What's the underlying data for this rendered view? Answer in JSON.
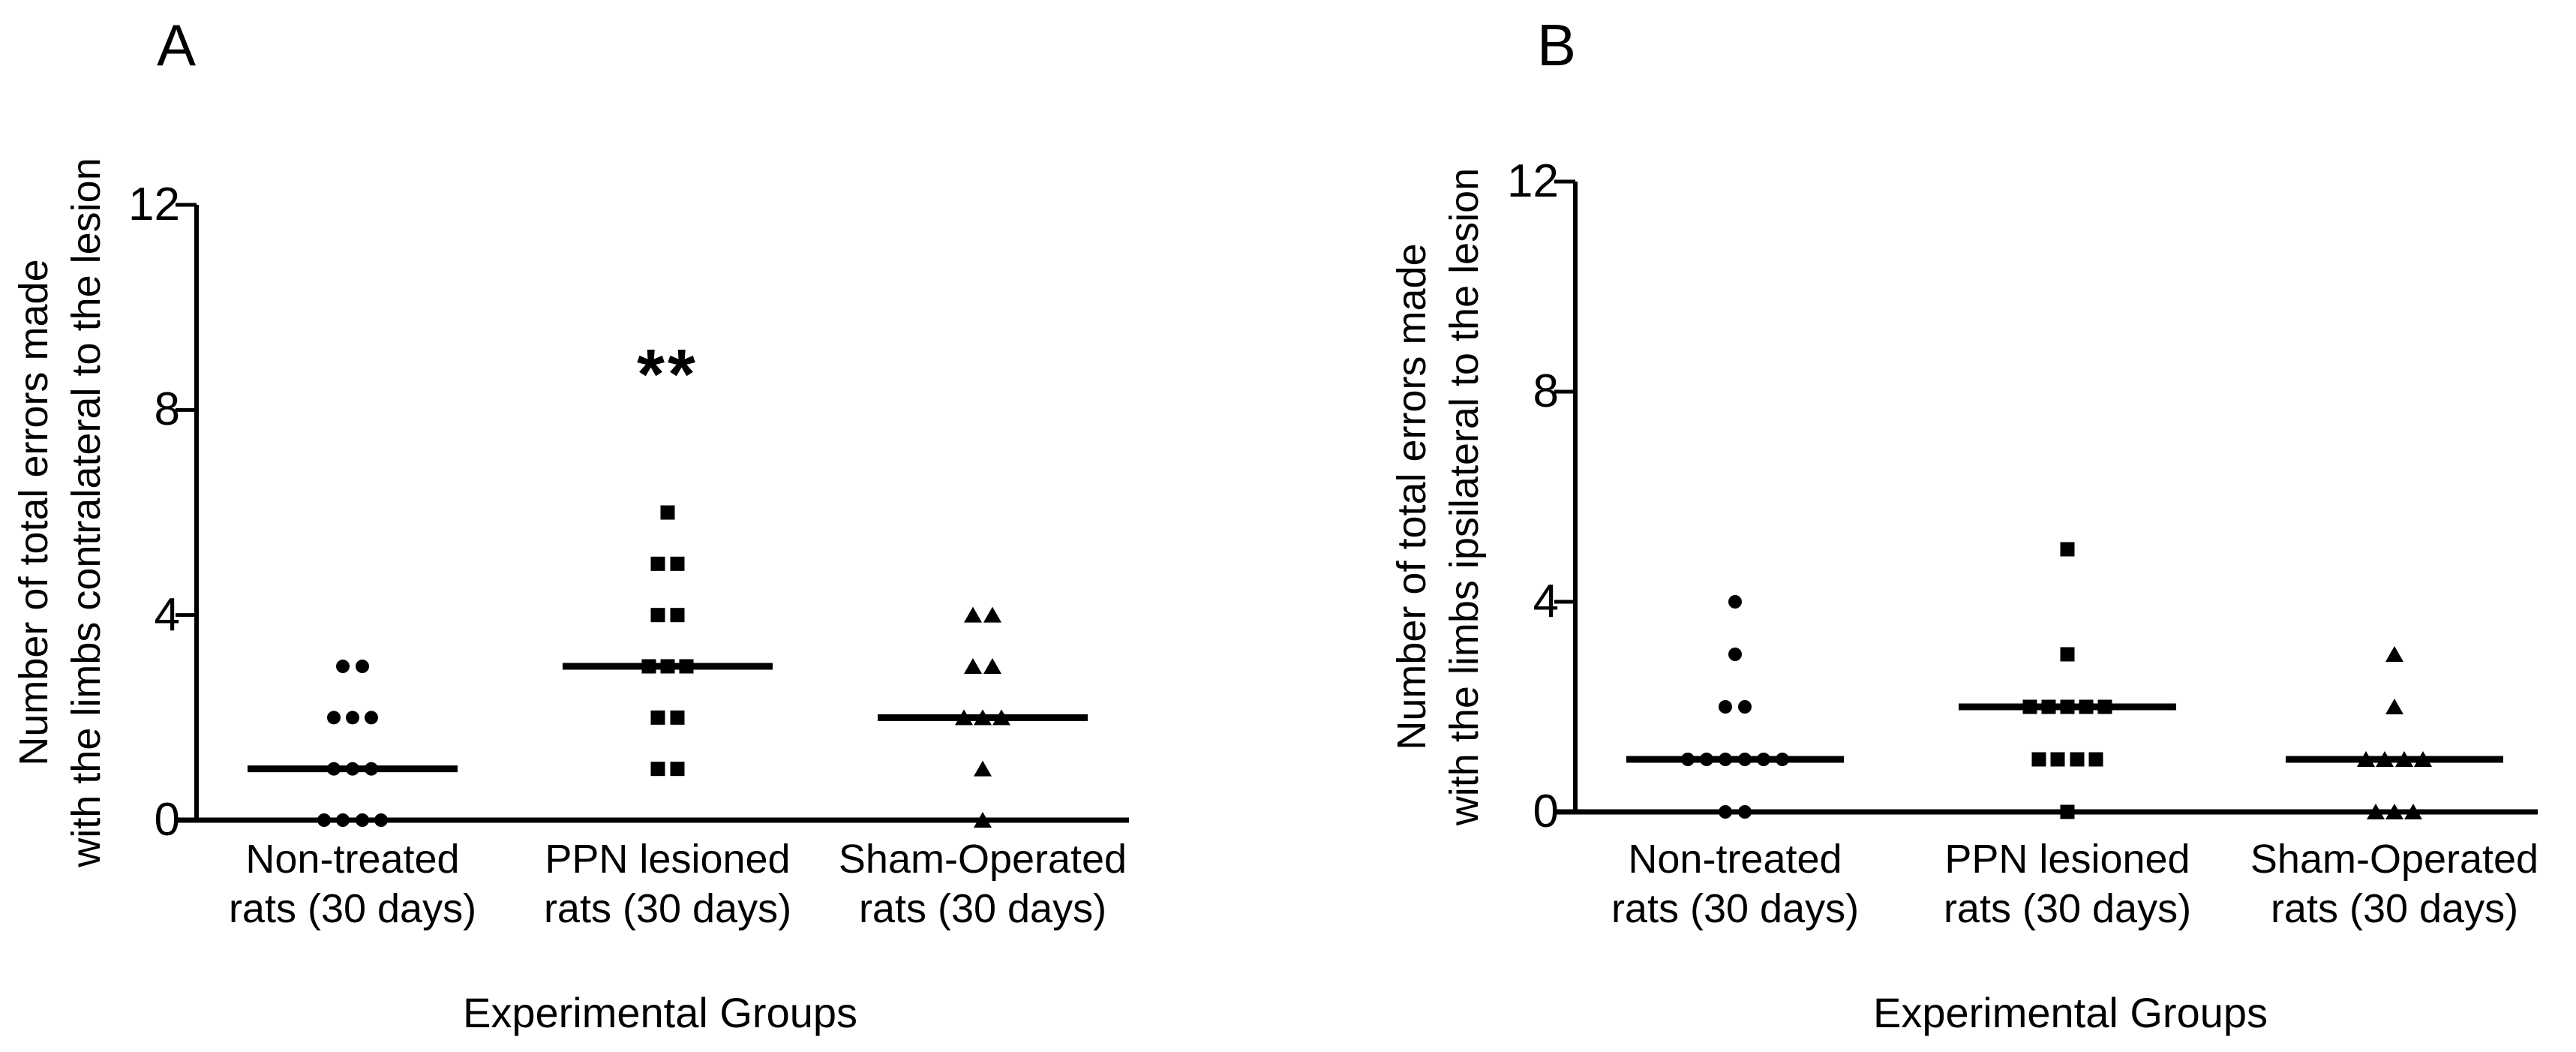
{
  "figure": {
    "background": "#ffffff",
    "ink_color": "#000000"
  },
  "chart_data": [
    {
      "type": "scatter",
      "panel_letter": "A",
      "ylabel_line1": "Number of total errors made",
      "ylabel_line2": "with the limbs contralateral to the lesion",
      "xlabel": "Experimental Groups",
      "yticks": [
        0,
        4,
        8,
        12
      ],
      "ylim": [
        0,
        12
      ],
      "legend": "none",
      "significance": {
        "group_index": 1,
        "label": "**"
      },
      "groups": [
        {
          "label_line1": "Non-treated",
          "label_line2": "rats (30 days)",
          "marker": "circle",
          "median": 1,
          "points": [
            {
              "v": 3,
              "dx": -13
            },
            {
              "v": 3,
              "dx": 13
            },
            {
              "v": 2,
              "dx": -25
            },
            {
              "v": 2,
              "dx": 0
            },
            {
              "v": 2,
              "dx": 25
            },
            {
              "v": 1,
              "dx": -25
            },
            {
              "v": 1,
              "dx": 0
            },
            {
              "v": 1,
              "dx": 25
            },
            {
              "v": 0,
              "dx": -38
            },
            {
              "v": 0,
              "dx": -13
            },
            {
              "v": 0,
              "dx": 13
            },
            {
              "v": 0,
              "dx": 38
            }
          ]
        },
        {
          "label_line1": "PPN lesioned",
          "label_line2": "rats (30 days)",
          "marker": "square",
          "median": 3,
          "points": [
            {
              "v": 6,
              "dx": 0
            },
            {
              "v": 5,
              "dx": -13
            },
            {
              "v": 5,
              "dx": 13
            },
            {
              "v": 4,
              "dx": -13
            },
            {
              "v": 4,
              "dx": 13
            },
            {
              "v": 3,
              "dx": -25
            },
            {
              "v": 3,
              "dx": 0
            },
            {
              "v": 3,
              "dx": 25
            },
            {
              "v": 2,
              "dx": -13
            },
            {
              "v": 2,
              "dx": 13
            },
            {
              "v": 1,
              "dx": -13
            },
            {
              "v": 1,
              "dx": 13
            }
          ]
        },
        {
          "label_line1": "Sham-Operated",
          "label_line2": "rats (30 days)",
          "marker": "triangle",
          "median": 2,
          "points": [
            {
              "v": 4,
              "dx": -13
            },
            {
              "v": 4,
              "dx": 13
            },
            {
              "v": 3,
              "dx": -13
            },
            {
              "v": 3,
              "dx": 13
            },
            {
              "v": 2,
              "dx": -25
            },
            {
              "v": 2,
              "dx": 0
            },
            {
              "v": 2,
              "dx": 25
            },
            {
              "v": 1,
              "dx": 0
            },
            {
              "v": 0,
              "dx": 0
            }
          ]
        }
      ]
    },
    {
      "type": "scatter",
      "panel_letter": "B",
      "ylabel_line1": "Number of total errors made",
      "ylabel_line2": "with the limbs ipsilateral to the lesion",
      "xlabel": "Experimental Groups",
      "yticks": [
        0,
        4,
        8,
        12
      ],
      "ylim": [
        0,
        12
      ],
      "legend": "none",
      "significance": null,
      "groups": [
        {
          "label_line1": "Non-treated",
          "label_line2": "rats (30 days)",
          "marker": "circle",
          "median": 1,
          "points": [
            {
              "v": 4,
              "dx": 0
            },
            {
              "v": 3,
              "dx": 0
            },
            {
              "v": 2,
              "dx": -13
            },
            {
              "v": 2,
              "dx": 13
            },
            {
              "v": 1,
              "dx": -63
            },
            {
              "v": 1,
              "dx": -38
            },
            {
              "v": 1,
              "dx": -13
            },
            {
              "v": 1,
              "dx": 13
            },
            {
              "v": 1,
              "dx": 38
            },
            {
              "v": 1,
              "dx": 63
            },
            {
              "v": 0,
              "dx": -13
            },
            {
              "v": 0,
              "dx": 13
            }
          ]
        },
        {
          "label_line1": "PPN lesioned",
          "label_line2": "rats (30 days)",
          "marker": "square",
          "median": 2,
          "points": [
            {
              "v": 5,
              "dx": 0
            },
            {
              "v": 3,
              "dx": 0
            },
            {
              "v": 2,
              "dx": -50
            },
            {
              "v": 2,
              "dx": -25
            },
            {
              "v": 2,
              "dx": 0
            },
            {
              "v": 2,
              "dx": 25
            },
            {
              "v": 2,
              "dx": 50
            },
            {
              "v": 1,
              "dx": -38
            },
            {
              "v": 1,
              "dx": -13
            },
            {
              "v": 1,
              "dx": 13
            },
            {
              "v": 1,
              "dx": 38
            },
            {
              "v": 0,
              "dx": 0
            }
          ]
        },
        {
          "label_line1": "Sham-Operated",
          "label_line2": "rats (30 days)",
          "marker": "triangle",
          "median": 1,
          "points": [
            {
              "v": 3,
              "dx": 0
            },
            {
              "v": 2,
              "dx": 0
            },
            {
              "v": 1,
              "dx": -38
            },
            {
              "v": 1,
              "dx": -13
            },
            {
              "v": 1,
              "dx": 13
            },
            {
              "v": 1,
              "dx": 38
            },
            {
              "v": 0,
              "dx": -25
            },
            {
              "v": 0,
              "dx": 0
            },
            {
              "v": 0,
              "dx": 25
            }
          ]
        }
      ]
    }
  ]
}
